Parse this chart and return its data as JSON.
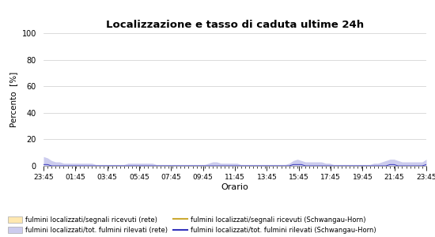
{
  "title": "Localizzazione e tasso di caduta ultime 24h",
  "xlabel": "Orario",
  "ylabel": "Percento  [%]",
  "ylim": [
    0,
    100
  ],
  "yticks": [
    0,
    20,
    40,
    60,
    80,
    100
  ],
  "x_tick_labels": [
    "23:45",
    "01:45",
    "03:45",
    "05:45",
    "07:45",
    "09:45",
    "11:45",
    "13:45",
    "15:45",
    "17:45",
    "19:45",
    "21:45",
    "23:45"
  ],
  "fill_rete_color": "#ccccee",
  "fill_horn_color": "#fff0cc",
  "line_rete_color": "#3333bb",
  "line_horn_color": "#ccaa33",
  "bg_color": "#ffffff",
  "grid_color": "#cccccc",
  "legend": [
    {
      "label": "fulmini localizzati/segnali ricevuti (rete)",
      "type": "patch",
      "color": "#ffe8b0"
    },
    {
      "label": "fulmini localizzati/tot. fulmini rilevati (rete)",
      "type": "patch",
      "color": "#ccccee"
    },
    {
      "label": "fulmini localizzati/segnali ricevuti (Schwangau-Horn)",
      "type": "line",
      "color": "#ccaa33"
    },
    {
      "label": "fulmini localizzati/tot. fulmini rilevati (Schwangau-Horn)",
      "type": "line",
      "color": "#3333bb"
    }
  ],
  "n_points": 96,
  "fill_rete_values": [
    7,
    6,
    4,
    3,
    3,
    2,
    2,
    2,
    2,
    2,
    2,
    2,
    2,
    1,
    1,
    1,
    1,
    1,
    1,
    1,
    1,
    2,
    2,
    2,
    2,
    2,
    2,
    2,
    1,
    1,
    1,
    1,
    1,
    1,
    1,
    1,
    1,
    1,
    1,
    1,
    1,
    2,
    3,
    3,
    2,
    2,
    2,
    2,
    2,
    1,
    1,
    1,
    1,
    1,
    1,
    1,
    1,
    1,
    1,
    1,
    1,
    2,
    4,
    5,
    4,
    3,
    3,
    3,
    3,
    3,
    2,
    2,
    1,
    1,
    1,
    1,
    1,
    1,
    1,
    1,
    1,
    1,
    2,
    2,
    3,
    4,
    5,
    5,
    4,
    3,
    3,
    3,
    3,
    3,
    3,
    5
  ],
  "line_rete_values": [
    1,
    1,
    0,
    0,
    0,
    0,
    0,
    0,
    0,
    0,
    0,
    0,
    0,
    0,
    0,
    0,
    0,
    0,
    0,
    0,
    0,
    0,
    0,
    0,
    0,
    0,
    0,
    0,
    0,
    0,
    0,
    0,
    0,
    0,
    0,
    0,
    0,
    0,
    0,
    0,
    0,
    0,
    0,
    0,
    0,
    0,
    0,
    0,
    0,
    0,
    0,
    0,
    0,
    0,
    0,
    0,
    0,
    0,
    0,
    0,
    0,
    0,
    1,
    1,
    1,
    0,
    0,
    0,
    0,
    0,
    0,
    0,
    0,
    0,
    0,
    0,
    0,
    0,
    0,
    0,
    0,
    0,
    0,
    0,
    0,
    0,
    1,
    1,
    0,
    0,
    0,
    0,
    0,
    0,
    0,
    1
  ],
  "fill_horn_values": [
    0,
    0,
    0,
    0,
    0,
    0,
    0,
    0,
    0,
    0,
    0,
    0,
    0,
    0,
    0,
    0,
    0,
    0,
    0,
    0,
    0,
    0,
    0,
    0,
    0,
    0,
    0,
    0,
    0,
    0,
    0,
    0,
    0,
    0,
    0,
    0,
    0,
    0,
    0,
    0,
    0,
    0,
    0,
    0,
    0,
    0,
    0,
    0,
    0,
    0,
    0,
    0,
    0,
    0,
    0,
    0,
    0,
    0,
    0,
    0,
    0,
    0,
    0,
    0,
    0,
    0,
    0,
    0,
    0,
    0,
    0,
    0,
    0,
    0,
    0,
    0,
    0,
    0,
    0,
    0,
    0,
    0,
    0,
    0,
    0,
    0,
    0,
    0,
    0,
    0,
    0,
    0,
    0,
    0,
    0,
    0
  ],
  "line_horn_values": [
    0,
    0,
    0,
    0,
    0,
    0,
    0,
    0,
    0,
    0,
    0,
    0,
    0,
    0,
    0,
    0,
    0,
    0,
    0,
    0,
    0,
    0,
    0,
    0,
    0,
    0,
    0,
    0,
    0,
    0,
    0,
    0,
    0,
    0,
    0,
    0,
    0,
    0,
    0,
    0,
    0,
    0,
    0,
    0,
    0,
    0,
    0,
    0,
    0,
    0,
    0,
    0,
    0,
    0,
    0,
    0,
    0,
    0,
    0,
    0,
    0,
    0,
    0,
    0,
    0,
    0,
    0,
    0,
    0,
    0,
    0,
    0,
    0,
    0,
    0,
    0,
    0,
    0,
    0,
    0,
    0,
    0,
    0,
    0,
    0,
    0,
    0,
    0,
    0,
    0,
    0,
    0,
    0,
    0,
    0,
    0
  ]
}
